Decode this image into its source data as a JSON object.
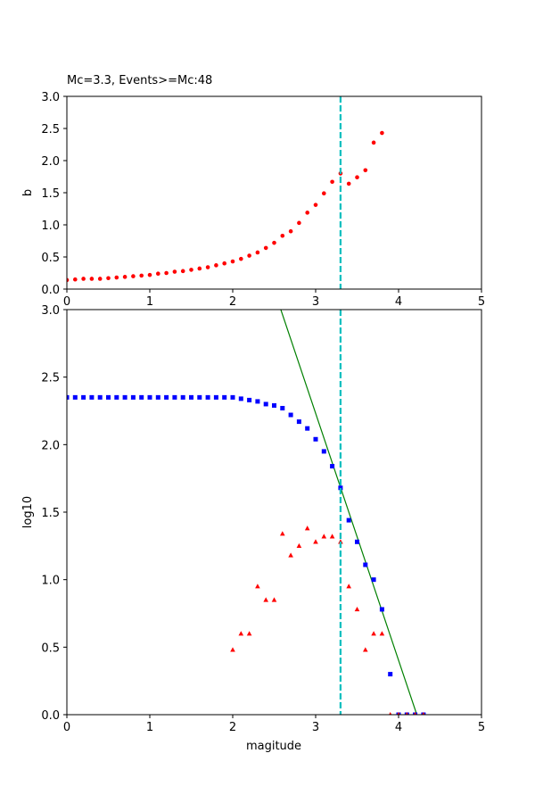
{
  "chart_data": [
    {
      "type": "scatter",
      "title": "Mc=3.3, Events>=Mc:48",
      "xlabel": "",
      "ylabel": "b",
      "xlim": [
        0,
        5
      ],
      "ylim": [
        0,
        3
      ],
      "xticks": [
        "0",
        "1",
        "2",
        "3",
        "4",
        "5"
      ],
      "yticks": [
        "0.0",
        "0.5",
        "1.0",
        "1.5",
        "2.0",
        "2.5",
        "3.0"
      ],
      "series": [
        {
          "marker": "circle",
          "color": "#ff0000",
          "x": [
            0.0,
            0.1,
            0.2,
            0.3,
            0.4,
            0.5,
            0.6,
            0.7,
            0.8,
            0.9,
            1.0,
            1.1,
            1.2,
            1.3,
            1.4,
            1.5,
            1.6,
            1.7,
            1.8,
            1.9,
            2.0,
            2.1,
            2.2,
            2.3,
            2.4,
            2.5,
            2.6,
            2.7,
            2.8,
            2.9,
            3.0,
            3.1,
            3.2,
            3.3,
            3.4,
            3.5,
            3.6,
            3.7,
            3.8
          ],
          "y": [
            0.14,
            0.15,
            0.16,
            0.16,
            0.16,
            0.17,
            0.18,
            0.19,
            0.2,
            0.21,
            0.22,
            0.24,
            0.25,
            0.27,
            0.28,
            0.3,
            0.32,
            0.34,
            0.37,
            0.4,
            0.43,
            0.47,
            0.52,
            0.57,
            0.64,
            0.72,
            0.83,
            0.9,
            1.03,
            1.19,
            1.31,
            1.49,
            1.67,
            1.8,
            1.64,
            1.74,
            1.85,
            2.28,
            2.43
          ]
        }
      ],
      "vline": {
        "x": 3.3,
        "color": "#00bfbf",
        "style": "dashed"
      }
    },
    {
      "type": "scatter",
      "title": "",
      "xlabel": "magitude",
      "ylabel": "log10",
      "xlim": [
        0,
        5
      ],
      "ylim": [
        0,
        3
      ],
      "xticks": [
        "0",
        "1",
        "2",
        "3",
        "4",
        "5"
      ],
      "yticks": [
        "0.0",
        "0.5",
        "1.0",
        "1.5",
        "2.0",
        "2.5",
        "3.0"
      ],
      "series": [
        {
          "marker": "square",
          "color": "#0000ff",
          "x": [
            0.0,
            0.1,
            0.2,
            0.3,
            0.4,
            0.5,
            0.6,
            0.7,
            0.8,
            0.9,
            1.0,
            1.1,
            1.2,
            1.3,
            1.4,
            1.5,
            1.6,
            1.7,
            1.8,
            1.9,
            2.0,
            2.1,
            2.2,
            2.3,
            2.4,
            2.5,
            2.6,
            2.7,
            2.8,
            2.9,
            3.0,
            3.1,
            3.2,
            3.3,
            3.4,
            3.5,
            3.6,
            3.7,
            3.8,
            3.9,
            4.0,
            4.1,
            4.2,
            4.3
          ],
          "y": [
            2.35,
            2.35,
            2.35,
            2.35,
            2.35,
            2.35,
            2.35,
            2.35,
            2.35,
            2.35,
            2.35,
            2.35,
            2.35,
            2.35,
            2.35,
            2.35,
            2.35,
            2.35,
            2.35,
            2.35,
            2.35,
            2.34,
            2.33,
            2.32,
            2.3,
            2.29,
            2.27,
            2.22,
            2.17,
            2.12,
            2.04,
            1.95,
            1.84,
            1.68,
            1.44,
            1.28,
            1.11,
            1.0,
            0.78,
            0.3,
            0.0,
            0.0,
            0.0,
            0.0
          ]
        },
        {
          "marker": "triangle",
          "color": "#ff0000",
          "x": [
            2.0,
            2.1,
            2.2,
            2.3,
            2.4,
            2.5,
            2.6,
            2.7,
            2.8,
            2.9,
            3.0,
            3.1,
            3.2,
            3.3,
            3.4,
            3.5,
            3.6,
            3.7,
            3.8,
            3.9,
            4.0,
            4.1,
            4.2,
            4.3
          ],
          "y": [
            0.48,
            0.6,
            0.6,
            0.95,
            0.85,
            0.85,
            1.34,
            1.18,
            1.25,
            1.38,
            1.28,
            1.32,
            1.32,
            1.28,
            0.95,
            0.78,
            0.48,
            0.6,
            0.6,
            0.0,
            0.0,
            0.0,
            0.0,
            0.0
          ]
        }
      ],
      "fit_line": {
        "x": [
          2.58,
          4.22
        ],
        "y": [
          3.0,
          0.0
        ],
        "color": "#008000"
      },
      "vline": {
        "x": 3.3,
        "color": "#00bfbf",
        "style": "dashed"
      }
    }
  ]
}
